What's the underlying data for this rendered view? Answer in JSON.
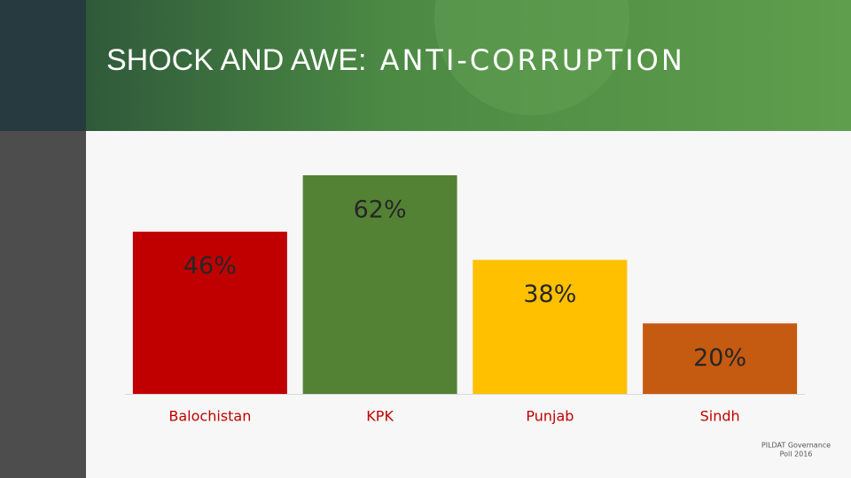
{
  "chart_data": {
    "type": "bar",
    "title_parts": [
      "SHOCK AND AWE:",
      "ANTI-CORRUPTION"
    ],
    "categories": [
      "Balochistan",
      "KPK",
      "Punjab",
      "Sindh"
    ],
    "values": [
      46,
      62,
      38,
      20
    ],
    "value_labels": [
      "46%",
      "62%",
      "38%",
      "20%"
    ],
    "colors": [
      "#c00000",
      "#548235",
      "#ffc000",
      "#c55a11"
    ],
    "source": [
      "PILDAT Governance",
      "Poll 2016"
    ]
  }
}
